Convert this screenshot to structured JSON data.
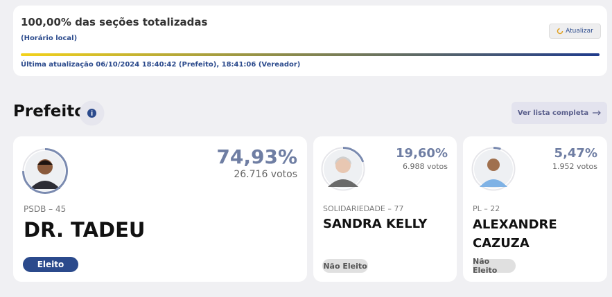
{
  "status": {
    "title": "100,00% das seções totalizadas",
    "subtitle": "(Horário local)",
    "refresh_button": "Atualizar",
    "last_update": "Última atualização 06/10/2024 18:40:42 (Prefeito), 18:41:06 (Vereador)"
  },
  "section": {
    "title": "Prefeito",
    "full_list_button": "Ver lista completa"
  },
  "candidates": [
    {
      "percent": "74,93%",
      "votes": "26.716 votos",
      "party": "PSDB – 45",
      "name": "DR. TADEU",
      "status": "Eleito"
    },
    {
      "percent": "19,60%",
      "votes": "6.988 votos",
      "party": "SOLIDARIEDADE – 77",
      "name": "SANDRA KELLY",
      "status": "Não Eleito"
    },
    {
      "percent": "5,47%",
      "votes": "1.952 votos",
      "party": "PL – 22",
      "name": "ALEXANDRE CAZUZA",
      "status": "Não Eleito"
    }
  ]
}
